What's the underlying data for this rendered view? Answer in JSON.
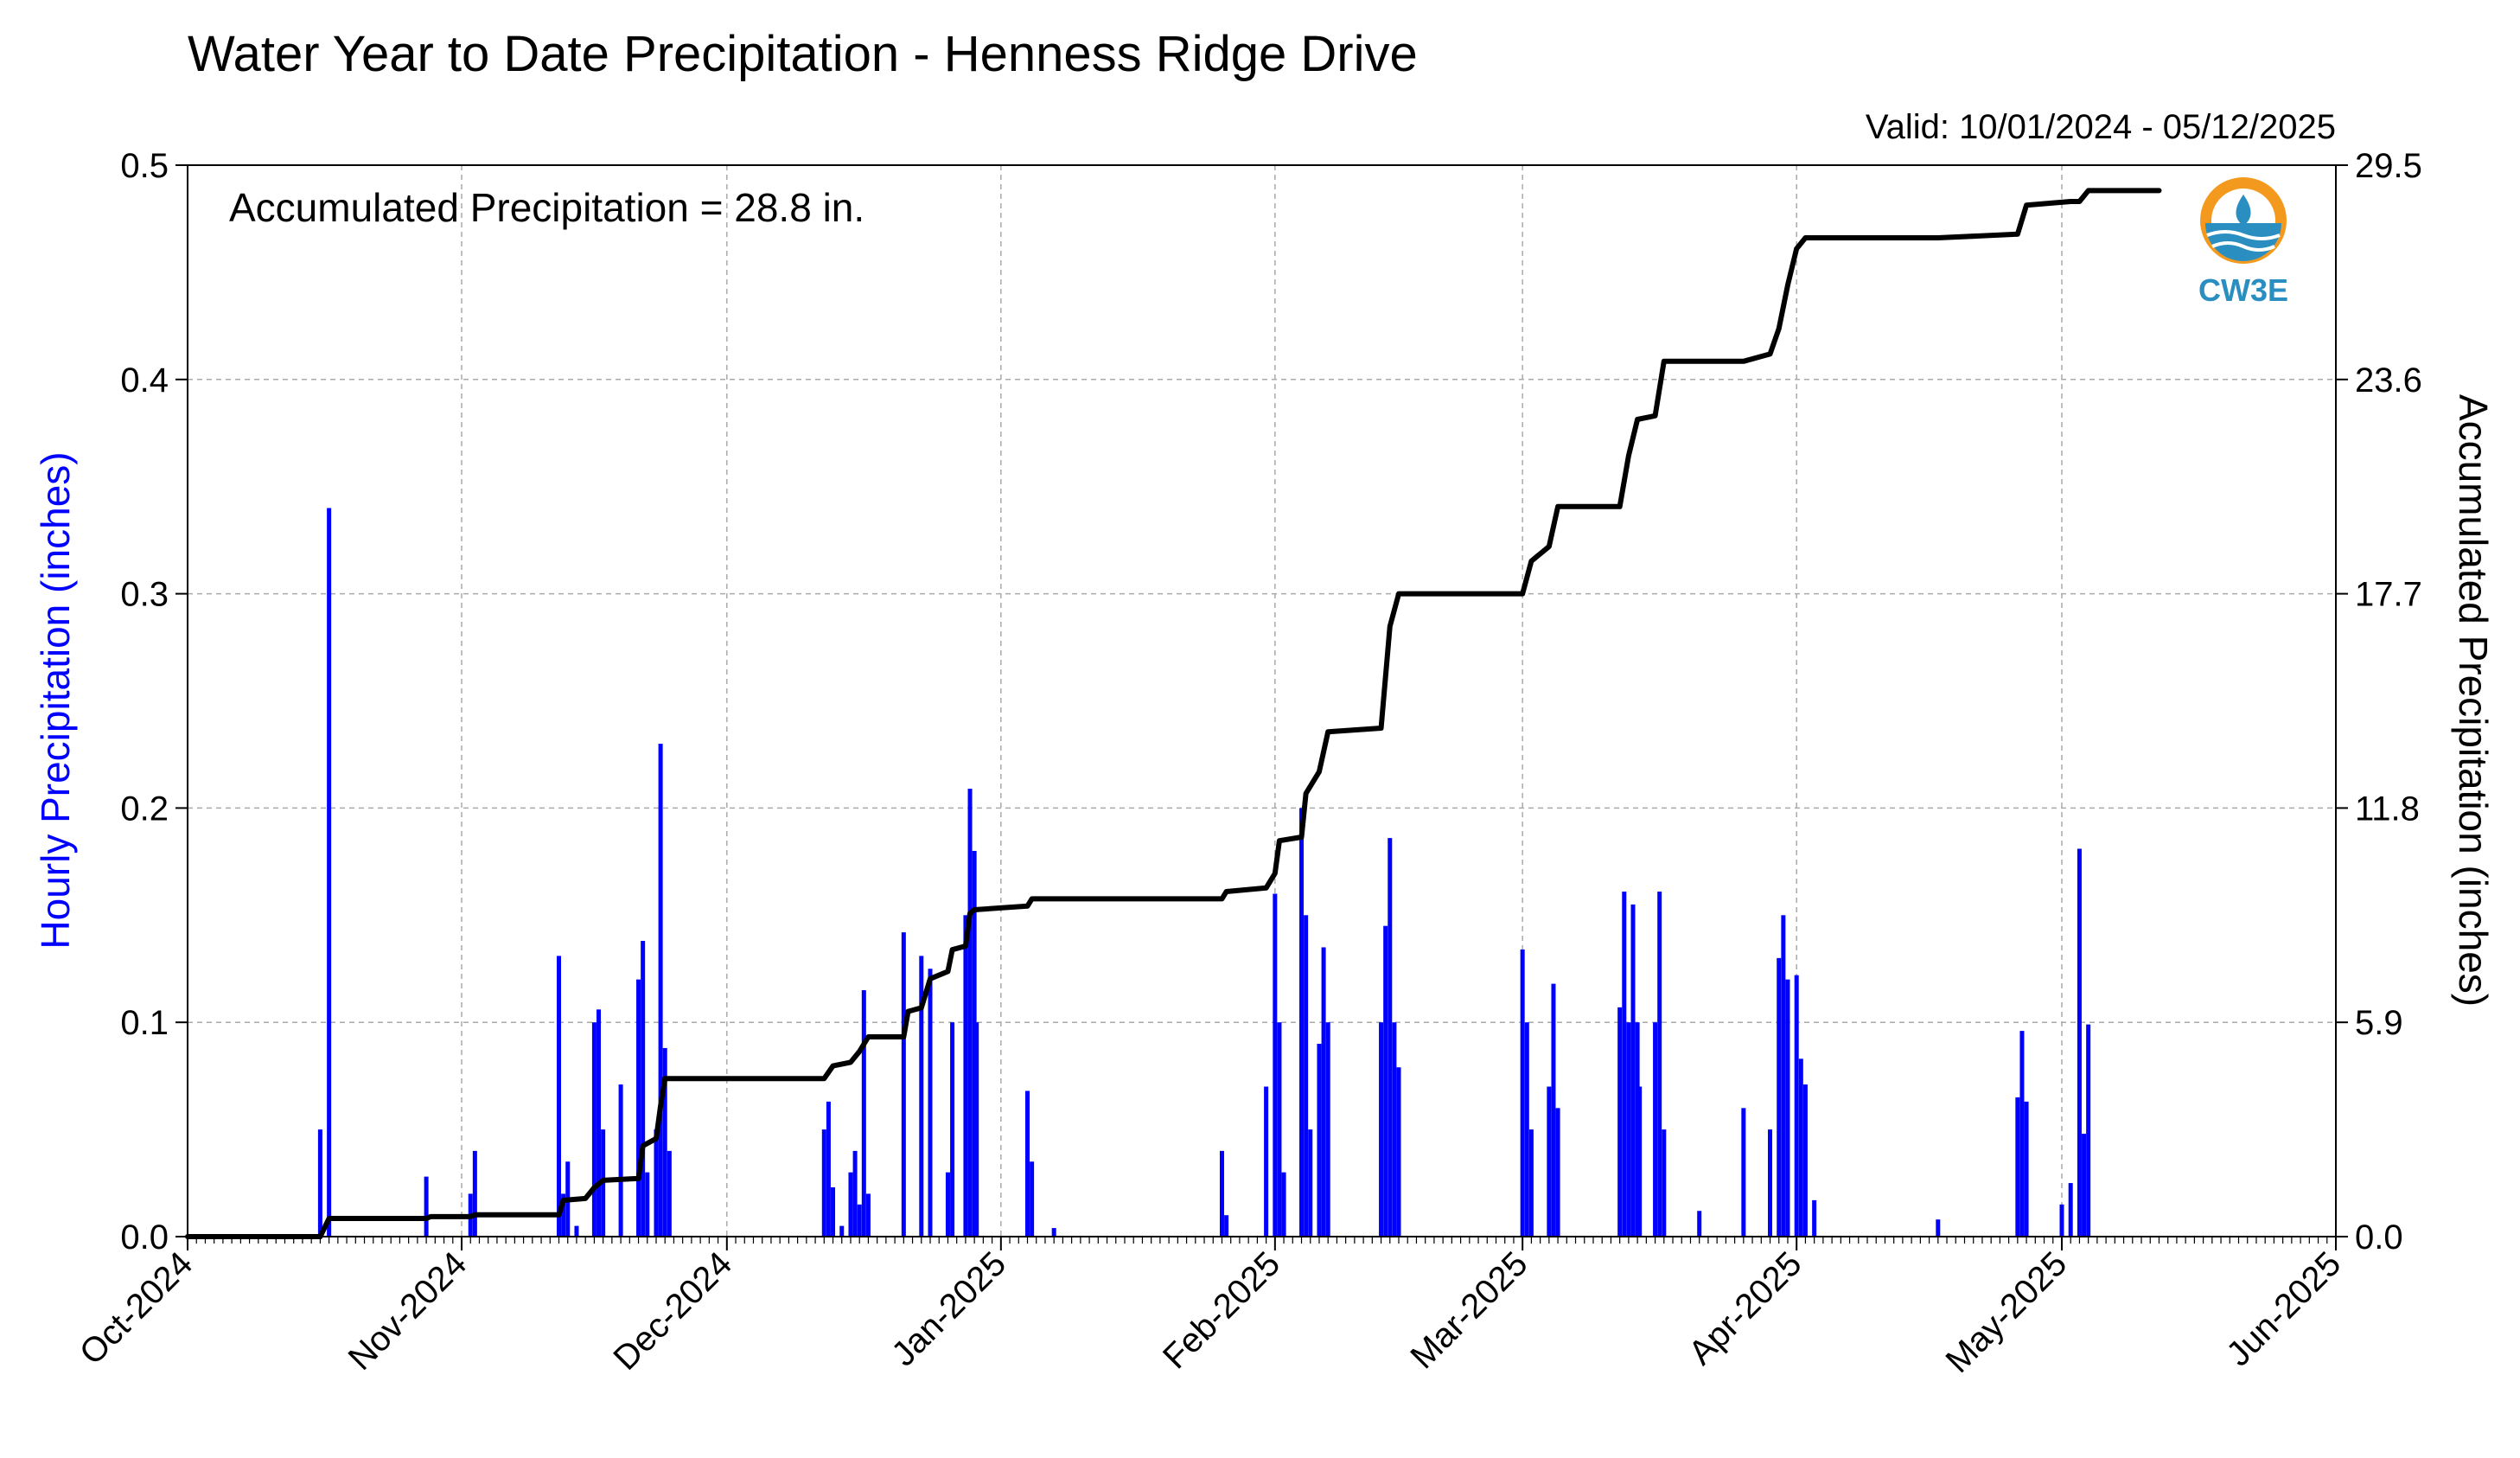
{
  "chart_data": {
    "type": "bar",
    "title": "Water Year to Date Precipitation - Henness Ridge Drive",
    "subtitle": "Valid: 10/01/2024 - 05/12/2025",
    "annotation": "Accumulated Precipitation = 28.8 in.",
    "ylabel_left": "Hourly Precipitation (inches)",
    "ylabel_right": "Accumulated Precipitation (inches)",
    "xlim": [
      "2024-10-01",
      "2025-06-01"
    ],
    "ylim_left": [
      0,
      0.5
    ],
    "ylim_right": [
      0,
      29.5
    ],
    "grid": true,
    "x_ticks": [
      {
        "date": "2024-10-01",
        "label": "Oct-2024"
      },
      {
        "date": "2024-11-01",
        "label": "Nov-2024"
      },
      {
        "date": "2024-12-01",
        "label": "Dec-2024"
      },
      {
        "date": "2025-01-01",
        "label": "Jan-2025"
      },
      {
        "date": "2025-02-01",
        "label": "Feb-2025"
      },
      {
        "date": "2025-03-01",
        "label": "Mar-2025"
      },
      {
        "date": "2025-04-01",
        "label": "Apr-2025"
      },
      {
        "date": "2025-05-01",
        "label": "May-2025"
      },
      {
        "date": "2025-06-01",
        "label": "Jun-2025"
      }
    ],
    "y_ticks_left": [
      "0.0",
      "0.1",
      "0.2",
      "0.3",
      "0.4",
      "0.5"
    ],
    "y_ticks_right": [
      "0.0",
      "5.9",
      "11.8",
      "17.7",
      "23.6",
      "29.5"
    ],
    "colors": {
      "hourly": "#0000ff",
      "accumulated": "#000000",
      "grid": "#aaaaaa",
      "logo_orange": "#f39a1e",
      "logo_blue": "#2a8fc0"
    },
    "series": [
      {
        "type": "bar",
        "axis": "left",
        "values": [
          [
            "2024-10-16",
            0.05
          ],
          [
            "2024-10-17",
            0.34
          ],
          [
            "2024-10-28",
            0.028
          ],
          [
            "2024-11-02",
            0.02
          ],
          [
            "2024-11-02 12:00",
            0.04
          ],
          [
            "2024-11-12",
            0.131
          ],
          [
            "2024-11-12 12:00",
            0.02
          ],
          [
            "2024-11-13",
            0.035
          ],
          [
            "2024-11-14",
            0.005
          ],
          [
            "2024-11-16",
            0.1
          ],
          [
            "2024-11-16 12:00",
            0.106
          ],
          [
            "2024-11-17",
            0.05
          ],
          [
            "2024-11-19",
            0.071
          ],
          [
            "2024-11-21",
            0.12
          ],
          [
            "2024-11-21 12:00",
            0.138
          ],
          [
            "2024-11-22",
            0.03
          ],
          [
            "2024-11-23",
            0.05
          ],
          [
            "2024-11-23 12:00",
            0.23
          ],
          [
            "2024-11-24",
            0.088
          ],
          [
            "2024-11-24 12:00",
            0.04
          ],
          [
            "2024-12-12",
            0.05
          ],
          [
            "2024-12-12 12:00",
            0.063
          ],
          [
            "2024-12-13",
            0.023
          ],
          [
            "2024-12-14",
            0.005
          ],
          [
            "2024-12-15",
            0.03
          ],
          [
            "2024-12-15 12:00",
            0.04
          ],
          [
            "2024-12-16",
            0.015
          ],
          [
            "2024-12-16 12:00",
            0.115
          ],
          [
            "2024-12-17",
            0.02
          ],
          [
            "2024-12-21",
            0.142
          ],
          [
            "2024-12-23",
            0.131
          ],
          [
            "2024-12-24",
            0.125
          ],
          [
            "2024-12-26",
            0.03
          ],
          [
            "2024-12-26 12:00",
            0.1
          ],
          [
            "2024-12-28",
            0.15
          ],
          [
            "2024-12-28 12:00",
            0.209
          ],
          [
            "2024-12-29",
            0.18
          ],
          [
            "2024-12-29 06:00",
            0.1
          ],
          [
            "2025-01-04",
            0.068
          ],
          [
            "2025-01-04 12:00",
            0.035
          ],
          [
            "2025-01-07",
            0.004
          ],
          [
            "2025-01-26",
            0.04
          ],
          [
            "2025-01-26 12:00",
            0.01
          ],
          [
            "2025-01-31",
            0.07
          ],
          [
            "2025-02-01",
            0.16
          ],
          [
            "2025-02-01 12:00",
            0.1
          ],
          [
            "2025-02-02",
            0.03
          ],
          [
            "2025-02-04",
            0.2
          ],
          [
            "2025-02-04 12:00",
            0.15
          ],
          [
            "2025-02-05",
            0.05
          ],
          [
            "2025-02-06",
            0.09
          ],
          [
            "2025-02-06 12:00",
            0.135
          ],
          [
            "2025-02-07",
            0.1
          ],
          [
            "2025-02-13",
            0.1
          ],
          [
            "2025-02-13 12:00",
            0.145
          ],
          [
            "2025-02-14",
            0.186
          ],
          [
            "2025-02-14 12:00",
            0.1
          ],
          [
            "2025-02-15",
            0.079
          ],
          [
            "2025-03-01",
            0.134
          ],
          [
            "2025-03-01 12:00",
            0.1
          ],
          [
            "2025-03-02",
            0.05
          ],
          [
            "2025-03-04",
            0.07
          ],
          [
            "2025-03-04 12:00",
            0.118
          ],
          [
            "2025-03-05",
            0.06
          ],
          [
            "2025-03-12",
            0.107
          ],
          [
            "2025-03-12 12:00",
            0.161
          ],
          [
            "2025-03-13",
            0.1
          ],
          [
            "2025-03-13 12:00",
            0.155
          ],
          [
            "2025-03-14",
            0.1
          ],
          [
            "2025-03-14 06:00",
            0.07
          ],
          [
            "2025-03-16",
            0.1
          ],
          [
            "2025-03-16 12:00",
            0.161
          ],
          [
            "2025-03-17",
            0.05
          ],
          [
            "2025-03-21",
            0.012
          ],
          [
            "2025-03-26",
            0.06
          ],
          [
            "2025-03-29",
            0.05
          ],
          [
            "2025-03-30",
            0.13
          ],
          [
            "2025-03-30 12:00",
            0.15
          ],
          [
            "2025-03-31",
            0.12
          ],
          [
            "2025-04-01",
            0.122
          ],
          [
            "2025-04-01 12:00",
            0.083
          ],
          [
            "2025-04-02",
            0.071
          ],
          [
            "2025-04-03",
            0.017
          ],
          [
            "2025-04-17",
            0.008
          ],
          [
            "2025-04-26",
            0.065
          ],
          [
            "2025-04-26 12:00",
            0.096
          ],
          [
            "2025-04-27",
            0.063
          ],
          [
            "2025-05-01",
            0.015
          ],
          [
            "2025-05-02",
            0.025
          ],
          [
            "2025-05-03",
            0.181
          ],
          [
            "2025-05-03 12:00",
            0.048
          ],
          [
            "2025-05-04",
            0.099
          ]
        ]
      },
      {
        "type": "line",
        "axis": "right",
        "values": [
          [
            "2024-10-01",
            0.0
          ],
          [
            "2024-10-16",
            0.0
          ],
          [
            "2024-10-17",
            0.5
          ],
          [
            "2024-10-28",
            0.5
          ],
          [
            "2024-10-28 12:00",
            0.55
          ],
          [
            "2024-11-02",
            0.55
          ],
          [
            "2024-11-02 12:00",
            0.6
          ],
          [
            "2024-11-12",
            0.6
          ],
          [
            "2024-11-12 12:00",
            1.0
          ],
          [
            "2024-11-15",
            1.05
          ],
          [
            "2024-11-16",
            1.35
          ],
          [
            "2024-11-17",
            1.55
          ],
          [
            "2024-11-21",
            1.6
          ],
          [
            "2024-11-21 12:00",
            2.5
          ],
          [
            "2024-11-23",
            2.7
          ],
          [
            "2024-11-23 12:00",
            3.6
          ],
          [
            "2024-11-24",
            4.35
          ],
          [
            "2024-12-12",
            4.35
          ],
          [
            "2024-12-13",
            4.7
          ],
          [
            "2024-12-15",
            4.8
          ],
          [
            "2024-12-16",
            5.1
          ],
          [
            "2024-12-17",
            5.5
          ],
          [
            "2024-12-21",
            5.5
          ],
          [
            "2024-12-21 12:00",
            6.2
          ],
          [
            "2024-12-23",
            6.3
          ],
          [
            "2024-12-24",
            7.1
          ],
          [
            "2024-12-26",
            7.3
          ],
          [
            "2024-12-26 12:00",
            7.9
          ],
          [
            "2024-12-28",
            8.0
          ],
          [
            "2024-12-28 12:00",
            8.9
          ],
          [
            "2024-12-29",
            9.0
          ],
          [
            "2025-01-04",
            9.1
          ],
          [
            "2025-01-04 12:00",
            9.3
          ],
          [
            "2025-01-26",
            9.3
          ],
          [
            "2025-01-26 12:00",
            9.5
          ],
          [
            "2025-01-31",
            9.6
          ],
          [
            "2025-02-01",
            10.0
          ],
          [
            "2025-02-01 12:00",
            10.9
          ],
          [
            "2025-02-04",
            11.0
          ],
          [
            "2025-02-04 12:00",
            12.2
          ],
          [
            "2025-02-05",
            12.4
          ],
          [
            "2025-02-06",
            12.8
          ],
          [
            "2025-02-07",
            13.9
          ],
          [
            "2025-02-13",
            14.0
          ],
          [
            "2025-02-14",
            16.8
          ],
          [
            "2025-02-15",
            17.7
          ],
          [
            "2025-03-01",
            17.7
          ],
          [
            "2025-03-02",
            18.6
          ],
          [
            "2025-03-04",
            19.0
          ],
          [
            "2025-03-05",
            20.1
          ],
          [
            "2025-03-12",
            20.1
          ],
          [
            "2025-03-13",
            21.5
          ],
          [
            "2025-03-14",
            22.5
          ],
          [
            "2025-03-16",
            22.6
          ],
          [
            "2025-03-17",
            24.1
          ],
          [
            "2025-03-26",
            24.1
          ],
          [
            "2025-03-29",
            24.3
          ],
          [
            "2025-03-30",
            25.0
          ],
          [
            "2025-03-31",
            26.2
          ],
          [
            "2025-04-01",
            27.2
          ],
          [
            "2025-04-02",
            27.5
          ],
          [
            "2025-04-17",
            27.5
          ],
          [
            "2025-04-26",
            27.6
          ],
          [
            "2025-04-27",
            28.4
          ],
          [
            "2025-05-02",
            28.5
          ],
          [
            "2025-05-03",
            28.5
          ],
          [
            "2025-05-04",
            28.8
          ],
          [
            "2025-05-12",
            28.8
          ]
        ]
      }
    ]
  },
  "logo": {
    "label": "CW3E"
  }
}
